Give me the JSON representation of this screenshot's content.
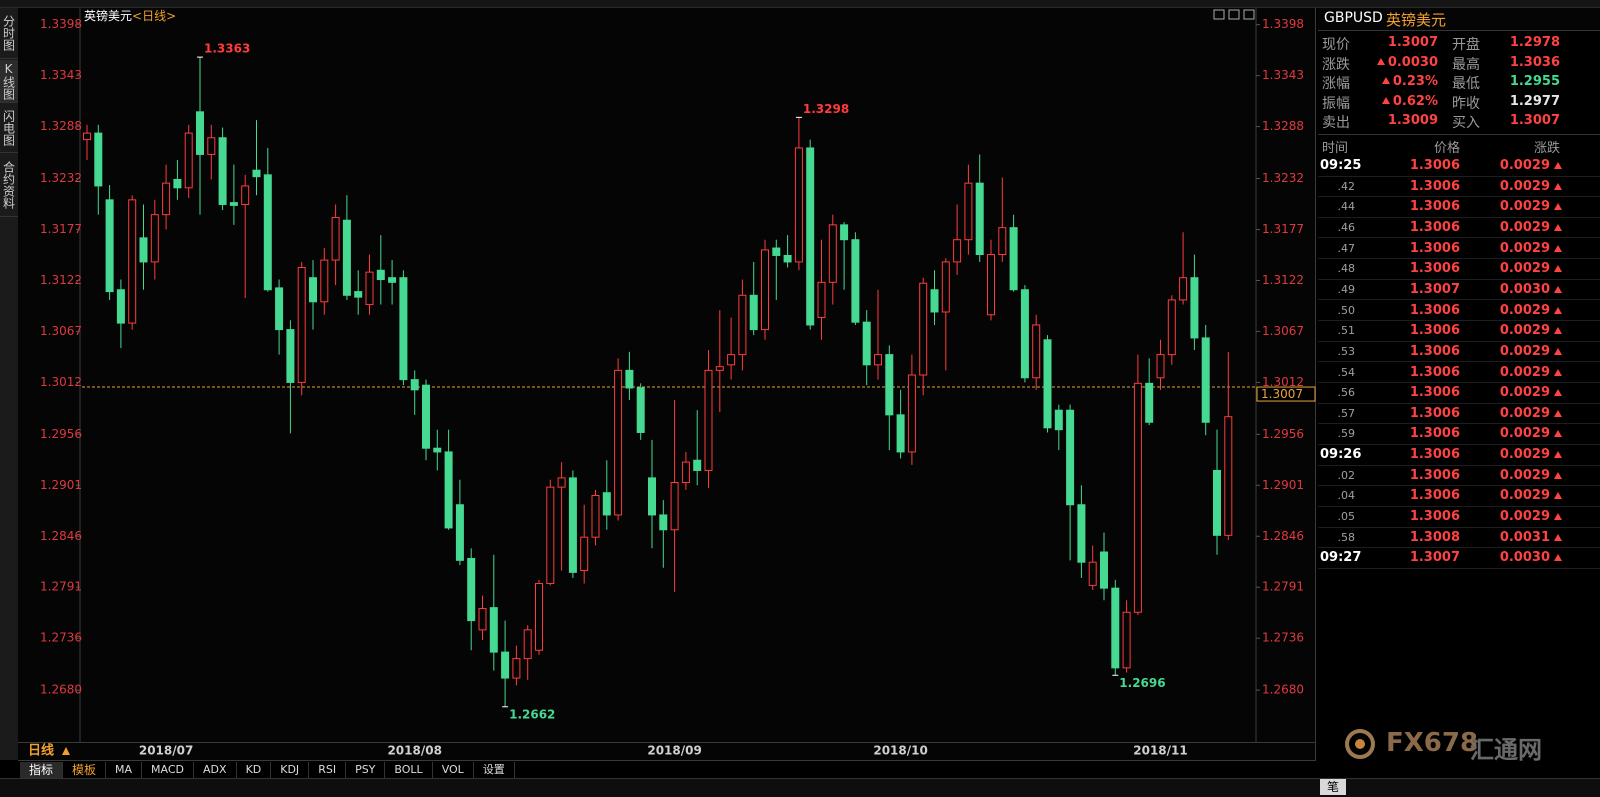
{
  "sidebar": {
    "tabs": [
      "分时图",
      "K线图",
      "闪电图",
      "合约资料"
    ]
  },
  "chart_data": {
    "type": "candlestick",
    "title": "英镑美元",
    "period": "<日线>",
    "categories": [
      null,
      null,
      null,
      null,
      null,
      null,
      null,
      "2018/07",
      null,
      null,
      null,
      null,
      null,
      null,
      null,
      null,
      null,
      null,
      null,
      null,
      null,
      null,
      null,
      null,
      null,
      null,
      null,
      null,
      null,
      "2018/08",
      null,
      null,
      null,
      null,
      null,
      null,
      null,
      null,
      null,
      null,
      null,
      null,
      null,
      null,
      null,
      null,
      null,
      null,
      null,
      null,
      null,
      null,
      "2018/09",
      null,
      null,
      null,
      null,
      null,
      null,
      null,
      null,
      null,
      null,
      null,
      null,
      null,
      null,
      null,
      null,
      null,
      null,
      null,
      "2018/10",
      null,
      null,
      null,
      null,
      null,
      null,
      null,
      null,
      null,
      null,
      null,
      null,
      null,
      null,
      null,
      null,
      null,
      null,
      null,
      null,
      null,
      null,
      "2018/11",
      null,
      null,
      null,
      null,
      null,
      null
    ],
    "open": [
      1.3274,
      1.3281,
      1.3209,
      1.3112,
      1.3076,
      1.3168,
      1.3142,
      1.3193,
      1.3231,
      1.3222,
      1.3304,
      1.3258,
      1.3276,
      1.3206,
      1.3204,
      1.3241,
      1.3236,
      1.3114,
      1.3069,
      1.3012,
      1.3125,
      1.3099,
      1.3144,
      1.3187,
      1.311,
      1.3096,
      1.3133,
      1.3125,
      1.3125,
      1.3015,
      1.3009,
      1.2941,
      1.2937,
      1.288,
      1.2822,
      1.2745,
      1.2769,
      1.2721,
      1.2693,
      1.2714,
      1.2723,
      1.2795,
      1.2899,
      1.2909,
      1.2809,
      1.2845,
      1.2893,
      1.2869,
      1.3025,
      1.3006,
      1.2909,
      1.2869,
      1.2853,
      1.2904,
      1.2928,
      1.2917,
      1.3025,
      1.3031,
      1.3042,
      1.3106,
      1.3069,
      1.3157,
      1.3149,
      1.3142,
      1.3265,
      1.3082,
      1.312,
      1.3182,
      1.3166,
      1.3077,
      1.3031,
      1.3042,
      1.2977,
      1.2937,
      1.302,
      1.3112,
      1.3088,
      1.3142,
      1.3166,
      1.3227,
      1.3085,
      1.315,
      1.3179,
      1.3112,
      1.3017,
      1.3058,
      1.2982,
      1.2982,
      1.288,
      1.2793,
      1.2829,
      1.279,
      1.2704,
      1.2764,
      1.3011,
      1.3017,
      1.3042,
      1.3101,
      1.3125,
      1.306,
      1.2917,
      1.2847
    ],
    "high": [
      1.329,
      1.329,
      1.3225,
      1.3123,
      1.3214,
      1.3204,
      1.3209,
      1.3247,
      1.3252,
      1.329,
      1.3363,
      1.329,
      1.3287,
      1.3247,
      1.3236,
      1.3295,
      1.3265,
      1.3123,
      1.3079,
      1.3142,
      1.3144,
      1.3157,
      1.3204,
      1.3214,
      1.3133,
      1.315,
      1.3171,
      1.3144,
      1.3133,
      1.3025,
      1.3015,
      1.2961,
      1.2961,
      1.2907,
      1.2833,
      1.2782,
      1.2826,
      1.2755,
      1.2728,
      1.275,
      1.2799,
      1.2907,
      1.2926,
      1.2917,
      1.288,
      1.2896,
      1.2928,
      1.3038,
      1.3045,
      1.3011,
      1.295,
      1.2885,
      1.2993,
      1.2937,
      1.2982,
      1.3047,
      1.309,
      1.3082,
      1.3123,
      1.3142,
      1.3166,
      1.3166,
      1.3171,
      1.3298,
      1.3274,
      1.3166,
      1.3193,
      1.3185,
      1.3174,
      1.309,
      1.3112,
      1.3052,
      1.3004,
      1.3042,
      1.3125,
      1.3133,
      1.3146,
      1.3204,
      1.3247,
      1.3258,
      1.3166,
      1.3233,
      1.3193,
      1.3117,
      1.3085,
      1.3063,
      1.2988,
      1.2988,
      1.2901,
      1.2836,
      1.285,
      1.2799,
      1.2777,
      1.3042,
      1.3038,
      1.3058,
      1.3106,
      1.3174,
      1.315,
      1.3074,
      1.2961,
      1.3045
    ],
    "low": [
      1.3252,
      1.3193,
      1.3101,
      1.3049,
      1.3069,
      1.3112,
      1.3123,
      1.3177,
      1.3209,
      1.3211,
      1.3193,
      1.3231,
      1.3198,
      1.3182,
      1.3103,
      1.3214,
      1.311,
      1.3042,
      1.2957,
      1.2998,
      1.3069,
      1.3085,
      1.3117,
      1.3101,
      1.3085,
      1.3085,
      1.3096,
      1.3096,
      1.3009,
      1.2977,
      1.2928,
      1.2917,
      1.2853,
      1.2815,
      1.2723,
      1.2734,
      1.2701,
      1.2662,
      1.2685,
      1.2691,
      1.2718,
      1.2793,
      1.2809,
      1.2801,
      1.2795,
      1.2836,
      1.2853,
      1.2863,
      1.2993,
      1.295,
      1.2833,
      1.2812,
      1.2786,
      1.2896,
      1.2901,
      1.2898,
      1.298,
      1.3015,
      1.3025,
      1.3063,
      1.3058,
      1.3101,
      1.3136,
      1.3133,
      1.3069,
      1.3058,
      1.3096,
      1.3112,
      1.3074,
      1.3009,
      1.3015,
      1.2939,
      1.293,
      1.2923,
      1.2998,
      1.3074,
      1.3025,
      1.3128,
      1.315,
      1.3142,
      1.3079,
      1.3142,
      1.311,
      1.3012,
      1.3004,
      1.2958,
      1.2939,
      1.282,
      1.2801,
      1.2788,
      1.2777,
      1.2696,
      1.2699,
      1.2761,
      1.2966,
      1.3004,
      1.3031,
      1.3096,
      1.3047,
      1.2955,
      1.2826,
      1.2842
    ],
    "close": [
      1.3281,
      1.3224,
      1.311,
      1.3076,
      1.3209,
      1.3142,
      1.3193,
      1.3227,
      1.3222,
      1.3281,
      1.3258,
      1.3276,
      1.3204,
      1.3203,
      1.3224,
      1.3234,
      1.3112,
      1.3069,
      1.3012,
      1.3136,
      1.3099,
      1.3144,
      1.319,
      1.3106,
      1.3104,
      1.3131,
      1.3123,
      1.312,
      1.3015,
      1.3004,
      1.2941,
      1.2937,
      1.2855,
      1.282,
      1.2755,
      1.2768,
      1.2721,
      1.2693,
      1.2714,
      1.2745,
      1.2795,
      1.2899,
      1.2909,
      1.2807,
      1.2845,
      1.289,
      1.2869,
      1.3025,
      1.3006,
      1.2958,
      1.2869,
      1.2853,
      1.2904,
      1.2926,
      1.2917,
      1.3025,
      1.3029,
      1.3042,
      1.3106,
      1.3069,
      1.3155,
      1.3149,
      1.3142,
      1.3265,
      1.3074,
      1.312,
      1.3182,
      1.3166,
      1.3077,
      1.3031,
      1.3042,
      1.2977,
      1.2937,
      1.302,
      1.3119,
      1.3088,
      1.3142,
      1.3166,
      1.3227,
      1.315,
      1.315,
      1.3179,
      1.3112,
      1.3017,
      1.3074,
      1.2963,
      1.2961,
      1.288,
      1.2818,
      1.2818,
      1.279,
      1.2704,
      1.2764,
      1.3011,
      1.2969,
      1.3042,
      1.3101,
      1.3125,
      1.306,
      1.2969,
      1.2847,
      1.2975
    ],
    "up_color": "#ff3b3b",
    "down_color": "#45d992",
    "ylim": [
      1.2624,
      1.3416
    ],
    "yticks": [
      1.3398,
      1.3343,
      1.3288,
      1.3232,
      1.3177,
      1.3122,
      1.3067,
      1.3012,
      1.2956,
      1.2901,
      1.2846,
      1.2791,
      1.2736,
      {
        "value": 1.268,
        "label": "1.2680"
      }
    ],
    "last_price": 1.3007,
    "last_price_color": "#e8a33c"
  },
  "period_button": "日线",
  "toolbar": [
    "指标",
    "模板",
    "MA",
    "MACD",
    "ADX",
    "KD",
    "KDJ",
    "RSI",
    "PSY",
    "BOLL",
    "VOL",
    "设置"
  ],
  "quote_panel": {
    "symbol": "GBPUSD",
    "name": "英镑美元",
    "quotes": [
      {
        "label": "现价",
        "value": "1.3007",
        "color": "#ff4242"
      },
      {
        "label": "开盘",
        "value": "1.2978",
        "color": "#ff4242"
      },
      {
        "label": "涨跌",
        "value": "0.0030",
        "color": "#ff4242",
        "trend": "up"
      },
      {
        "label": "最高",
        "value": "1.3036",
        "color": "#ff4242"
      },
      {
        "label": "涨幅",
        "value": "0.23%",
        "color": "#ff4242",
        "trend": "up"
      },
      {
        "label": "最低",
        "value": "1.2955",
        "color": "#45d992"
      },
      {
        "label": "振幅",
        "value": "0.62%",
        "color": "#ff4242",
        "trend": "up"
      },
      {
        "label": "昨收",
        "value": "1.2977",
        "color": "#e6e6e6"
      },
      {
        "label": "卖出",
        "value": "1.3009",
        "color": "#ff4242"
      },
      {
        "label": "买入",
        "value": "1.3007",
        "color": "#ff4242"
      }
    ],
    "ticks_header": [
      "时间",
      "价格",
      "涨跌"
    ],
    "ticks": [
      {
        "time": "09:25",
        "price": "1.3006",
        "change": "0.0029"
      },
      {
        "time": ".42",
        "price": "1.3006",
        "change": "0.0029"
      },
      {
        "time": ".44",
        "price": "1.3006",
        "change": "0.0029"
      },
      {
        "time": ".46",
        "price": "1.3006",
        "change": "0.0029"
      },
      {
        "time": ".47",
        "price": "1.3006",
        "change": "0.0029"
      },
      {
        "time": ".48",
        "price": "1.3006",
        "change": "0.0029"
      },
      {
        "time": ".49",
        "price": "1.3007",
        "change": "0.0030"
      },
      {
        "time": ".50",
        "price": "1.3006",
        "change": "0.0029"
      },
      {
        "time": ".51",
        "price": "1.3006",
        "change": "0.0029"
      },
      {
        "time": ".53",
        "price": "1.3006",
        "change": "0.0029"
      },
      {
        "time": ".54",
        "price": "1.3006",
        "change": "0.0029"
      },
      {
        "time": ".56",
        "price": "1.3006",
        "change": "0.0029"
      },
      {
        "time": ".57",
        "price": "1.3006",
        "change": "0.0029"
      },
      {
        "time": ".59",
        "price": "1.3006",
        "change": "0.0029"
      },
      {
        "time": "09:26",
        "price": "1.3006",
        "change": "0.0029"
      },
      {
        "time": ".02",
        "price": "1.3006",
        "change": "0.0029"
      },
      {
        "time": ".04",
        "price": "1.3006",
        "change": "0.0029"
      },
      {
        "time": ".05",
        "price": "1.3006",
        "change": "0.0029"
      },
      {
        "time": ".58",
        "price": "1.3008",
        "change": "0.0031"
      },
      {
        "time": "09:27",
        "price": "1.3007",
        "change": "0.0030"
      }
    ]
  },
  "bottom_tab": "笔",
  "watermark": {
    "brand": "FX678",
    "name": "汇通网"
  }
}
